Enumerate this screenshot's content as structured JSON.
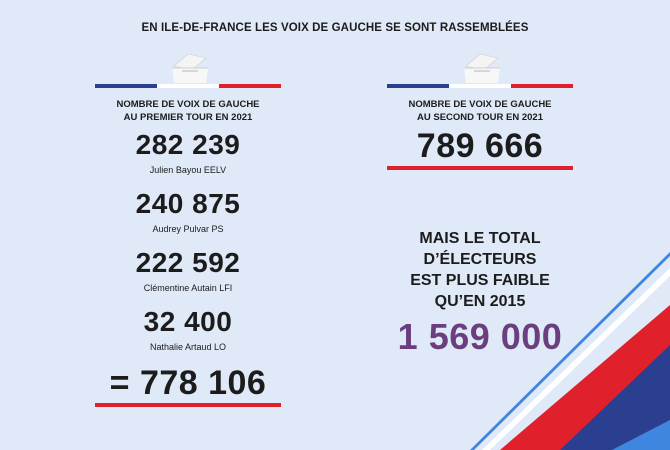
{
  "headline": "EN ILE-DE-FRANCE LES VOIX DE GAUCHE SE SONT RASSEMBLÉES",
  "first_round": {
    "label_line1": "NOMBRE DE VOIX DE GAUCHE",
    "label_line2": "AU PREMIER TOUR EN 2021",
    "candidates": [
      {
        "votes": "282 239",
        "name": "Julien Bayou EELV"
      },
      {
        "votes": "240 875",
        "name": "Audrey Pulvar PS"
      },
      {
        "votes": "222 592",
        "name": "Clémentine Autain LFI"
      },
      {
        "votes": "32 400",
        "name": "Nathalie Artaud LO"
      }
    ],
    "total": "= 778 106"
  },
  "second_round": {
    "label_line1": "NOMBRE DE VOIX DE GAUCHE",
    "label_line2": "AU SECOND TOUR EN 2021",
    "total": "789 666"
  },
  "electors": {
    "lines": [
      "MAIS LE TOTAL",
      "D’ÉLECTEURS",
      "EST PLUS FAIBLE",
      "QU’EN 2015"
    ],
    "value": "1 569 000"
  },
  "colors": {
    "background": "#dfe9f7",
    "flag_blue": "#2a3f8f",
    "flag_white": "#ffffff",
    "flag_red": "#e0202a",
    "accent_purple": "#6b3f7f"
  },
  "icons": {
    "ballot_box": "ballot-box-icon",
    "decoration": "tricolor-stripes-decoration"
  }
}
